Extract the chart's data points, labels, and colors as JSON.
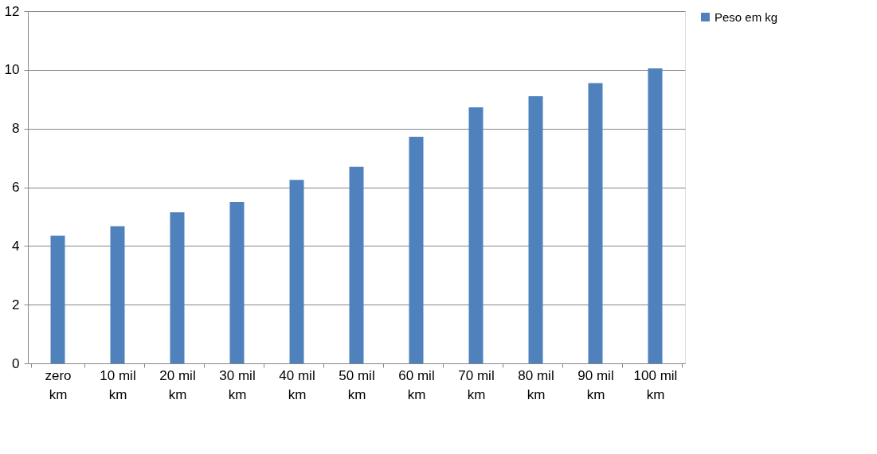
{
  "chart_data": {
    "type": "bar",
    "categories": [
      "zero km",
      "10 mil km",
      "20 mil km",
      "30 mil km",
      "40 mil km",
      "50 mil km",
      "60 mil km",
      "70 mil km",
      "80 mil km",
      "90 mil km",
      "100 mil km"
    ],
    "series": [
      {
        "name": "Peso em kg",
        "color": "#4f81bd",
        "values": [
          4.35,
          4.67,
          5.15,
          5.5,
          6.25,
          6.7,
          7.72,
          8.72,
          9.1,
          9.55,
          10.05
        ]
      }
    ],
    "ylim": [
      0,
      12
    ],
    "yticks": [
      0,
      2,
      4,
      6,
      8,
      10,
      12
    ],
    "grid": "y",
    "legend": "right"
  }
}
